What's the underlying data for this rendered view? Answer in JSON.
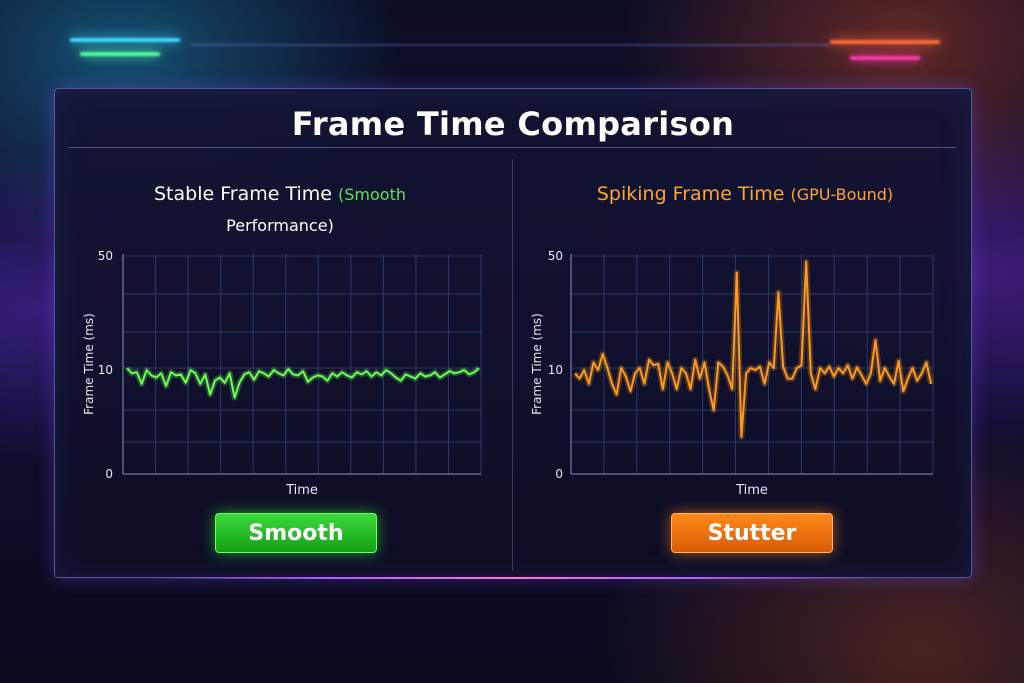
{
  "title": "Frame Time Comparison",
  "colors": {
    "stable_line": "#6cff52",
    "spiking_line": "#ff9a1a",
    "stable_title_accent": "#5fe35f",
    "spiking_title": "#ffa332",
    "grid": "#2a3a66"
  },
  "charts": {
    "stable": {
      "title": "Stable Frame Time",
      "subtitle_part1": "(Smooth",
      "subtitle_part2": "Performance)",
      "ylabel": "Frame Time (ms)",
      "xlabel": "Time",
      "ticks": [
        "50",
        "10",
        "0"
      ],
      "status_label": "Smooth"
    },
    "spiking": {
      "title": "Spiking Frame Time",
      "subtitle": "(GPU-Bound)",
      "ylabel": "Frame Time (ms)",
      "xlabel": "Time",
      "ticks": [
        "50",
        "10",
        "0"
      ],
      "status_label": "Stutter"
    }
  },
  "chart_data": [
    {
      "type": "line",
      "title": "Stable Frame Time (Smooth Performance)",
      "xlabel": "Time",
      "ylabel": "Frame Time (ms)",
      "yticks": [
        0,
        10,
        50
      ],
      "ylim": [
        0,
        50
      ],
      "grid": true,
      "series": [
        {
          "values": [
            10,
            9.5,
            9.6,
            8.5,
            9.8,
            9.3,
            9.1,
            9.5,
            8.3,
            9.6,
            9.3,
            9.4,
            8.6,
            9.8,
            9.5,
            8.5,
            9.4,
            7.5,
            8.8,
            9.1,
            8.6,
            9.5,
            7.2,
            8.6,
            9.4,
            9.6,
            8.9,
            9.7,
            9.5,
            9.2,
            9.8,
            9.5,
            9.3,
            9.9,
            9.4,
            9.3,
            9.7,
            8.7,
            9.1,
            9.3,
            9.2,
            8.8,
            9.5,
            9.2,
            9.6,
            9.3,
            9.1,
            9.6,
            9.4,
            9.7,
            9.2,
            9.6,
            9.3,
            9.8,
            9.5,
            9.1,
            8.8,
            9.4,
            9.2,
            9.0,
            9.5,
            9.2,
            9.3,
            9.6,
            9.1,
            9.4,
            9.7,
            9.5,
            9.6,
            9.8,
            9.4,
            9.6,
            10
          ]
        }
      ]
    },
    {
      "type": "line",
      "title": "Spiking Frame Time (GPU-Bound)",
      "xlabel": "Time",
      "ylabel": "Frame Time (ms)",
      "yticks": [
        0,
        10,
        50
      ],
      "ylim": [
        0,
        50
      ],
      "grid": true,
      "series": [
        {
          "values": [
            9.5,
            9.0,
            9.8,
            8.5,
            12,
            9.8,
            15,
            10,
            8.5,
            7.5,
            10,
            9.2,
            7.8,
            9.5,
            10,
            8.5,
            13,
            11,
            11.5,
            8,
            12,
            9.5,
            8,
            10,
            9.5,
            8,
            13,
            9,
            12,
            8,
            6,
            12,
            10.5,
            9.3,
            8,
            44,
            3.5,
            9.5,
            10,
            9.8,
            10.5,
            8.5,
            12,
            10,
            37,
            10.5,
            9,
            9,
            10,
            11,
            48,
            9.5,
            8,
            10,
            9.5,
            10.5,
            9.2,
            10,
            9.5,
            11,
            9,
            10.2,
            9.3,
            8.5,
            9.5,
            20,
            8.8,
            10,
            9.2,
            8.5,
            12.5,
            7.8,
            9,
            10,
            8.8,
            9.5,
            12,
            8.5
          ]
        }
      ]
    }
  ]
}
